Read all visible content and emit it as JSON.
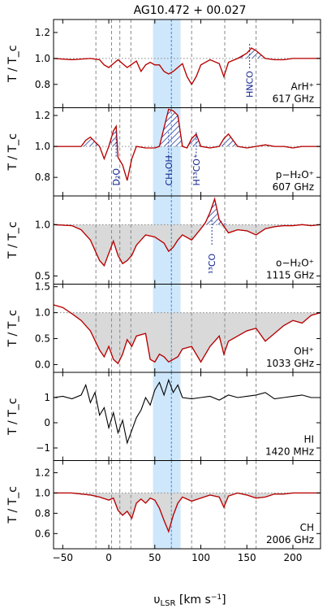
{
  "title": "AG10.472 + 00.027",
  "x_axis": {
    "label": "υ_LSR [km s⁻¹]",
    "range": [
      -60,
      230
    ],
    "ticks": [
      -50,
      0,
      50,
      100,
      150,
      200
    ],
    "tick_labels": [
      "−50",
      "0",
      "50",
      "100",
      "150",
      "200"
    ]
  },
  "y_axis_label": "T / T_c",
  "reference_lines_kms": [
    -14,
    3,
    12,
    24,
    90,
    126,
    160
  ],
  "cyan_velocity_kms": 68,
  "shaded_band_kms": [
    48,
    78
  ],
  "colors": {
    "data": "#000000",
    "fit": "#d40000",
    "hatch": "#1f3b9e",
    "band": "#cfe7fb",
    "cyan_line": "#1f8fe0",
    "gray_fill": "#d9d9d9",
    "grid": "#888888"
  },
  "chart_data": [
    {
      "type": "line",
      "species": "ArH⁺",
      "freq": "617 GHz",
      "ylim": [
        0.62,
        1.3
      ],
      "yticks": [
        0.8,
        1.0,
        1.2
      ],
      "ytick_labels": [
        "0.8",
        "1.0",
        "1.2"
      ],
      "continuum": 1.0,
      "annotations": [
        {
          "text": "HNCO",
          "x": 153
        }
      ],
      "x": [
        -60,
        -40,
        -20,
        -10,
        -5,
        0,
        5,
        10,
        20,
        30,
        35,
        40,
        45,
        50,
        55,
        60,
        65,
        70,
        75,
        80,
        85,
        90,
        95,
        100,
        110,
        120,
        125,
        130,
        140,
        150,
        155,
        160,
        170,
        180,
        190,
        200,
        210,
        220,
        230
      ],
      "y": [
        1.0,
        0.99,
        1.0,
        0.99,
        0.95,
        0.93,
        0.96,
        0.99,
        0.93,
        0.98,
        0.9,
        0.95,
        0.97,
        0.95,
        0.95,
        0.9,
        0.88,
        0.9,
        0.93,
        0.96,
        0.86,
        0.8,
        0.86,
        0.95,
        0.99,
        0.96,
        0.86,
        0.97,
        1.0,
        1.04,
        1.08,
        1.06,
        1.0,
        0.99,
        0.99,
        1.0,
        1.0,
        1.0,
        1.0
      ]
    },
    {
      "type": "line",
      "species": "p−H₂O⁺",
      "freq": "607 GHz",
      "ylim": [
        0.68,
        1.25
      ],
      "yticks": [
        0.8,
        1.0,
        1.2
      ],
      "ytick_labels": [
        "0.8",
        "1.0",
        "1.2"
      ],
      "continuum": 1.0,
      "annotations": [
        {
          "text": "D₂O",
          "x": 8
        },
        {
          "text": "CH₃OH",
          "x": 65
        },
        {
          "text": "H¹³CO⁺",
          "x": 95
        }
      ],
      "x": [
        -60,
        -40,
        -30,
        -25,
        -20,
        -10,
        -5,
        0,
        5,
        8,
        10,
        15,
        20,
        25,
        30,
        40,
        50,
        55,
        60,
        65,
        70,
        75,
        80,
        85,
        90,
        95,
        100,
        110,
        120,
        125,
        130,
        140,
        150,
        160,
        170,
        180,
        190,
        200,
        210,
        220,
        230
      ],
      "y": [
        1.0,
        1.0,
        1.0,
        1.04,
        1.06,
        1.0,
        0.92,
        1.0,
        1.1,
        1.13,
        0.93,
        0.88,
        0.78,
        0.92,
        1.0,
        0.99,
        0.99,
        1.0,
        1.12,
        1.24,
        1.23,
        1.2,
        1.0,
        0.99,
        1.05,
        1.08,
        1.0,
        0.99,
        1.0,
        1.05,
        1.08,
        1.0,
        0.99,
        1.0,
        1.01,
        1.0,
        1.0,
        0.99,
        1.0,
        1.0,
        1.0
      ]
    },
    {
      "type": "line",
      "species": "o−H₂O⁺",
      "freq": "1115 GHz",
      "ylim": [
        0.42,
        1.28
      ],
      "yticks": [
        0.5,
        1.0
      ],
      "ytick_labels": [
        "0.5",
        "1.0"
      ],
      "continuum": 1.0,
      "annotations": [
        {
          "text": "¹³CO",
          "x": 112
        }
      ],
      "x": [
        -60,
        -40,
        -30,
        -20,
        -15,
        -10,
        -5,
        0,
        5,
        10,
        15,
        20,
        25,
        30,
        35,
        40,
        50,
        60,
        65,
        70,
        75,
        80,
        90,
        100,
        105,
        110,
        115,
        120,
        130,
        140,
        150,
        160,
        170,
        180,
        190,
        200,
        210,
        220,
        230
      ],
      "y": [
        1.0,
        0.99,
        0.95,
        0.85,
        0.75,
        0.65,
        0.6,
        0.72,
        0.84,
        0.7,
        0.62,
        0.65,
        0.7,
        0.8,
        0.85,
        0.9,
        0.88,
        0.82,
        0.74,
        0.78,
        0.85,
        0.9,
        0.85,
        0.96,
        1.02,
        1.12,
        1.25,
        1.05,
        0.92,
        0.95,
        0.94,
        0.9,
        0.96,
        0.98,
        0.99,
        0.99,
        1.0,
        0.99,
        1.0
      ]
    },
    {
      "type": "line",
      "species": "OH⁺",
      "freq": "1033 GHz",
      "ylim": [
        -0.15,
        1.55
      ],
      "yticks": [
        0.0,
        0.5,
        1.0,
        1.5
      ],
      "ytick_labels": [
        "0.0",
        "0.5",
        "1.0",
        "1.5"
      ],
      "continuum": 1.0,
      "x": [
        -60,
        -50,
        -40,
        -30,
        -20,
        -10,
        -5,
        0,
        5,
        10,
        15,
        20,
        25,
        30,
        40,
        45,
        50,
        55,
        60,
        65,
        70,
        75,
        80,
        90,
        95,
        100,
        105,
        110,
        120,
        125,
        130,
        140,
        150,
        160,
        170,
        180,
        190,
        200,
        210,
        220,
        230
      ],
      "y": [
        1.15,
        1.1,
        0.98,
        0.85,
        0.65,
        0.28,
        0.15,
        0.35,
        0.1,
        0.02,
        0.2,
        0.48,
        0.35,
        0.55,
        0.6,
        0.1,
        0.05,
        0.2,
        0.15,
        0.05,
        0.1,
        0.15,
        0.3,
        0.35,
        0.2,
        0.05,
        0.2,
        0.35,
        0.55,
        0.2,
        0.45,
        0.55,
        0.65,
        0.7,
        0.45,
        0.6,
        0.75,
        0.85,
        0.8,
        0.95,
        1.0
      ]
    },
    {
      "type": "line",
      "species": "HI",
      "freq": "1420 MHz",
      "ylim": [
        -1.5,
        2.0
      ],
      "yticks": [
        -1,
        0,
        1
      ],
      "ytick_labels": [
        "−1",
        "0",
        "1"
      ],
      "x": [
        -60,
        -50,
        -40,
        -30,
        -25,
        -20,
        -15,
        -10,
        -5,
        0,
        5,
        10,
        15,
        20,
        25,
        30,
        35,
        40,
        45,
        50,
        55,
        60,
        65,
        70,
        75,
        80,
        90,
        100,
        110,
        120,
        130,
        140,
        150,
        160,
        170,
        180,
        190,
        200,
        210,
        220,
        230
      ],
      "y": [
        1.0,
        1.05,
        0.95,
        1.1,
        1.5,
        0.8,
        1.2,
        0.3,
        0.6,
        -0.2,
        0.4,
        -0.4,
        0.1,
        -0.8,
        -0.3,
        0.2,
        0.5,
        1.0,
        0.7,
        1.3,
        1.6,
        1.1,
        1.7,
        1.2,
        1.5,
        1.0,
        0.95,
        1.0,
        1.05,
        0.9,
        1.1,
        1.0,
        1.05,
        1.1,
        1.2,
        0.95,
        1.0,
        1.05,
        1.1,
        1.0,
        1.0
      ]
    },
    {
      "type": "line",
      "species": "CH",
      "freq": "2006 GHz",
      "ylim": [
        0.45,
        1.32
      ],
      "yticks": [
        0.6,
        0.8,
        1.0,
        1.2
      ],
      "ytick_labels": [
        "0.6",
        "0.8",
        "1.0",
        "1.2"
      ],
      "continuum": 1.0,
      "x": [
        -60,
        -40,
        -20,
        -10,
        0,
        5,
        10,
        15,
        20,
        25,
        30,
        35,
        40,
        45,
        50,
        55,
        60,
        65,
        70,
        75,
        80,
        90,
        100,
        110,
        120,
        125,
        130,
        140,
        150,
        160,
        170,
        180,
        190,
        200,
        210,
        220,
        230
      ],
      "y": [
        1.0,
        1.0,
        0.98,
        0.96,
        0.93,
        0.95,
        0.83,
        0.78,
        0.82,
        0.75,
        0.9,
        0.94,
        0.9,
        0.95,
        0.93,
        0.85,
        0.73,
        0.62,
        0.78,
        0.9,
        0.96,
        0.92,
        0.95,
        0.98,
        0.96,
        0.86,
        0.97,
        1.0,
        0.98,
        0.95,
        0.96,
        0.99,
        0.99,
        1.0,
        1.0,
        1.0,
        1.0
      ]
    }
  ]
}
